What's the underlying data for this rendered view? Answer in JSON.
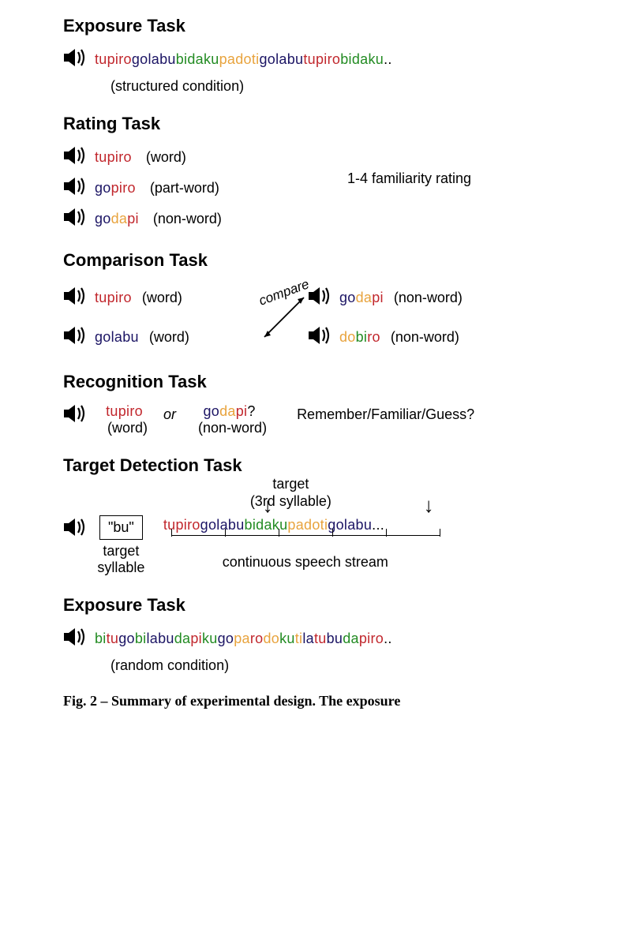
{
  "colors": {
    "red": "#c1272d",
    "navy": "#1b1464",
    "green": "#228b22",
    "orange": "#e8a33d",
    "black": "#000000"
  },
  "fonts": {
    "title_size": 22,
    "body_size": 18,
    "title_weight": 700
  },
  "exposure1": {
    "title": "Exposure Task",
    "stream": [
      {
        "text": "tu",
        "c": "red"
      },
      {
        "text": "pi",
        "c": "red"
      },
      {
        "text": "ro",
        "c": "red"
      },
      {
        "text": "go",
        "c": "navy"
      },
      {
        "text": "la",
        "c": "navy"
      },
      {
        "text": "bu",
        "c": "navy"
      },
      {
        "text": "bi",
        "c": "green"
      },
      {
        "text": "da",
        "c": "green"
      },
      {
        "text": "ku",
        "c": "green"
      },
      {
        "text": "pa",
        "c": "orange"
      },
      {
        "text": "do",
        "c": "orange"
      },
      {
        "text": "ti",
        "c": "orange"
      },
      {
        "text": "go",
        "c": "navy"
      },
      {
        "text": "la",
        "c": "navy"
      },
      {
        "text": "bu",
        "c": "navy"
      },
      {
        "text": "tu",
        "c": "red"
      },
      {
        "text": "pi",
        "c": "red"
      },
      {
        "text": "ro",
        "c": "red"
      },
      {
        "text": "bi",
        "c": "green"
      },
      {
        "text": "da",
        "c": "green"
      },
      {
        "text": "ku",
        "c": "green"
      },
      {
        "text": "..",
        "c": "black"
      }
    ],
    "sublabel": "(structured condition)"
  },
  "rating": {
    "title": "Rating Task",
    "items": [
      {
        "syllables": [
          {
            "text": "tu",
            "c": "red"
          },
          {
            "text": "pi",
            "c": "red"
          },
          {
            "text": "ro",
            "c": "red"
          }
        ],
        "note": "(word)"
      },
      {
        "syllables": [
          {
            "text": "go",
            "c": "navy"
          },
          {
            "text": "pi",
            "c": "red"
          },
          {
            "text": "ro",
            "c": "red"
          }
        ],
        "note": "(part-word)"
      },
      {
        "syllables": [
          {
            "text": "go",
            "c": "navy"
          },
          {
            "text": "da",
            "c": "orange"
          },
          {
            "text": "pi",
            "c": "red"
          }
        ],
        "note": "(non-word)"
      }
    ],
    "right_label": "1-4 familiarity rating"
  },
  "comparison": {
    "title": "Comparison Task",
    "compare_label": "compare",
    "left": [
      {
        "syllables": [
          {
            "text": "tu",
            "c": "red"
          },
          {
            "text": "pi",
            "c": "red"
          },
          {
            "text": "ro",
            "c": "red"
          }
        ],
        "note": "(word)"
      },
      {
        "syllables": [
          {
            "text": "go",
            "c": "navy"
          },
          {
            "text": "la",
            "c": "navy"
          },
          {
            "text": "bu",
            "c": "navy"
          }
        ],
        "note": "(word)"
      }
    ],
    "right": [
      {
        "syllables": [
          {
            "text": "go",
            "c": "navy"
          },
          {
            "text": "da",
            "c": "orange"
          },
          {
            "text": "pi",
            "c": "red"
          }
        ],
        "note": "(non-word)"
      },
      {
        "syllables": [
          {
            "text": "do",
            "c": "orange"
          },
          {
            "text": "bi",
            "c": "green"
          },
          {
            "text": "ro",
            "c": "red"
          }
        ],
        "note": "(non-word)"
      }
    ]
  },
  "recognition": {
    "title": "Recognition Task",
    "left": {
      "syllables": [
        {
          "text": "tu",
          "c": "red"
        },
        {
          "text": "pi",
          "c": "red"
        },
        {
          "text": "ro",
          "c": "red"
        }
      ],
      "note": "(word)"
    },
    "or": "or",
    "right": {
      "syllables": [
        {
          "text": "go",
          "c": "navy"
        },
        {
          "text": "da",
          "c": "orange"
        },
        {
          "text": "pi",
          "c": "red"
        }
      ],
      "suffix": "?",
      "note": "(non-word)"
    },
    "prompt": "Remember/Familiar/Guess?"
  },
  "target": {
    "title": "Target Detection Task",
    "top_label_line1": "target",
    "top_label_line2": "(3rd syllable)",
    "box": "\"bu\"",
    "box_sub1": "target",
    "box_sub2": "syllable",
    "stream": [
      {
        "text": "tu",
        "c": "red"
      },
      {
        "text": "pi",
        "c": "red"
      },
      {
        "text": "ro",
        "c": "red"
      },
      {
        "text": "go",
        "c": "navy"
      },
      {
        "text": "la",
        "c": "navy"
      },
      {
        "text": "bu",
        "c": "navy"
      },
      {
        "text": "bi",
        "c": "green"
      },
      {
        "text": "da",
        "c": "green"
      },
      {
        "text": "ku",
        "c": "green"
      },
      {
        "text": "pa",
        "c": "orange"
      },
      {
        "text": "do",
        "c": "orange"
      },
      {
        "text": "ti",
        "c": "orange"
      },
      {
        "text": "go",
        "c": "navy"
      },
      {
        "text": "la",
        "c": "navy"
      },
      {
        "text": "bu",
        "c": "navy"
      },
      {
        "text": "...",
        "c": "black"
      }
    ],
    "ticks_pct": [
      0,
      20,
      40,
      60,
      80,
      100
    ],
    "arrow1_pct": 37,
    "arrow2_pct": 97,
    "stream_label": "continuous speech stream"
  },
  "exposure2": {
    "title": "Exposure Task",
    "stream": [
      {
        "text": "bi",
        "c": "green"
      },
      {
        "text": "tu",
        "c": "red"
      },
      {
        "text": "go",
        "c": "navy"
      },
      {
        "text": "bi",
        "c": "green"
      },
      {
        "text": "la",
        "c": "navy"
      },
      {
        "text": "bu",
        "c": "navy"
      },
      {
        "text": "da",
        "c": "green"
      },
      {
        "text": "pi",
        "c": "red"
      },
      {
        "text": "ku",
        "c": "green"
      },
      {
        "text": "go",
        "c": "navy"
      },
      {
        "text": "pa",
        "c": "orange"
      },
      {
        "text": "ro",
        "c": "red"
      },
      {
        "text": "do",
        "c": "orange"
      },
      {
        "text": "ku",
        "c": "green"
      },
      {
        "text": "ti",
        "c": "orange"
      },
      {
        "text": "la",
        "c": "navy"
      },
      {
        "text": "tu",
        "c": "red"
      },
      {
        "text": "bu",
        "c": "navy"
      },
      {
        "text": "da",
        "c": "green"
      },
      {
        "text": "pi",
        "c": "red"
      },
      {
        "text": "ro",
        "c": "red"
      },
      {
        "text": "..",
        "c": "black"
      }
    ],
    "sublabel": "(random condition)"
  },
  "caption": "Fig. 2 – Summary of experimental design. The exposure"
}
